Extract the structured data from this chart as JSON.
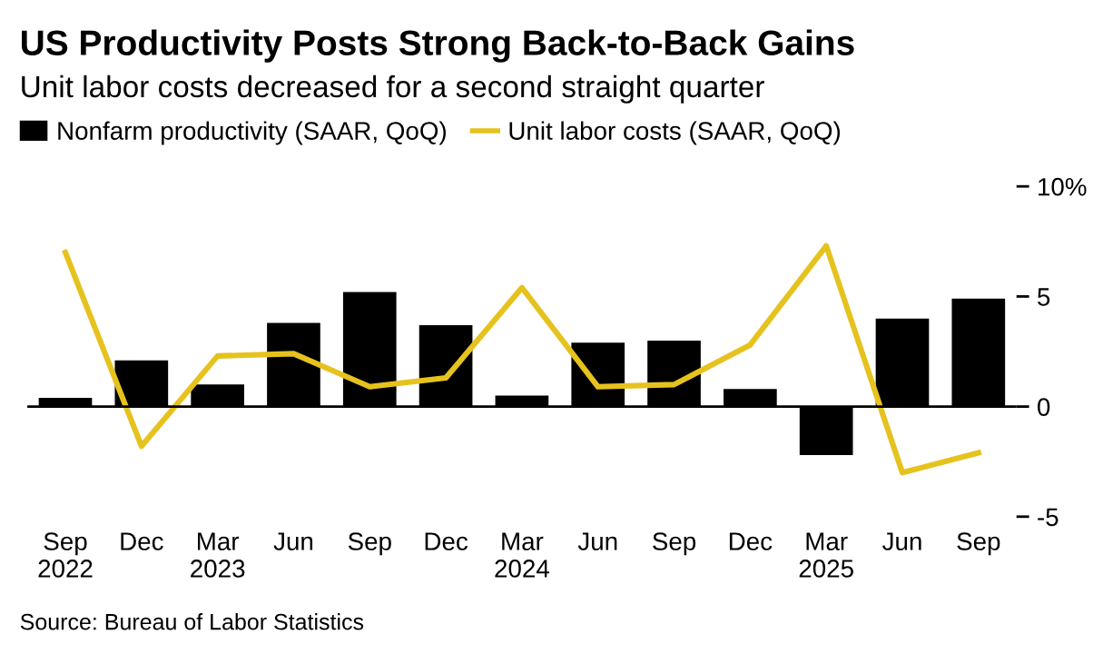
{
  "chart_data": {
    "type": "bar",
    "title": "US Productivity Posts Strong Back-to-Back Gains",
    "subtitle": "Unit labor costs decreased for a second straight quarter",
    "categories": [
      "Sep\n2022",
      "Dec",
      "Mar\n2023",
      "Jun",
      "Sep",
      "Dec",
      "Mar\n2024",
      "Jun",
      "Sep",
      "Dec",
      "Mar\n2025",
      "Jun",
      "Sep"
    ],
    "series": [
      {
        "name": "Nonfarm productivity (SAAR, QoQ)",
        "color": "#000000",
        "values": [
          0.4,
          2.1,
          1.0,
          3.8,
          5.2,
          3.7,
          0.5,
          2.9,
          3.0,
          0.8,
          -2.2,
          4.0,
          4.9
        ]
      },
      {
        "name": "Unit labor costs (SAAR, QoQ)",
        "type": "line",
        "color": "#e6c21e",
        "values": [
          7.0,
          -1.8,
          2.3,
          2.4,
          0.9,
          1.3,
          5.4,
          0.9,
          1.0,
          2.8,
          7.3,
          -3.0,
          -2.1
        ]
      }
    ],
    "ylim": [
      -5,
      10
    ],
    "yticks": [
      {
        "value": -5,
        "label": "-5"
      },
      0,
      5,
      {
        "value": 10,
        "label": "10%"
      }
    ],
    "grid": false,
    "ref_lines": [
      {
        "axis": "y",
        "value": 0,
        "color": "#000000"
      }
    ],
    "legend": "top left",
    "annotations": [
      "Source: Bureau of Labor Statistics"
    ]
  }
}
